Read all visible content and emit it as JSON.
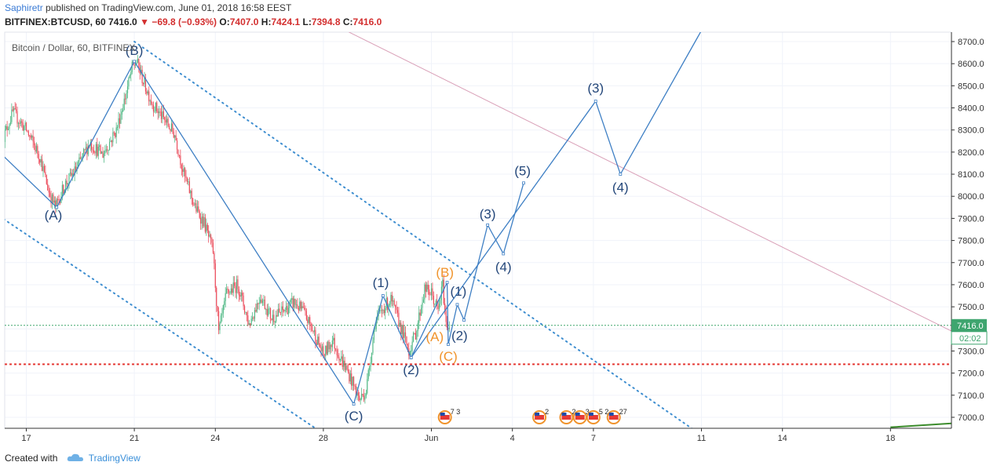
{
  "header": {
    "author": "Saphiretr",
    "published_text": "published on TradingView.com, June 01, 2018 16:58 EEST",
    "symbol_line": {
      "symbol": "BITFINEX:BTCUSD, 60",
      "last": "7416.0",
      "change": "−69.8 (−0.93%)",
      "o_label": "O:",
      "o": "7407.0",
      "h_label": "H:",
      "h": "7424.1",
      "l_label": "L:",
      "l": "7394.8",
      "c_label": "C:",
      "c": "7416.0"
    }
  },
  "footer": {
    "created_with": "Created with",
    "brand": "TradingView"
  },
  "chart_data": {
    "type": "candlestick",
    "title": "Bitcoin / Dollar, 60, BITFINEX",
    "x_ticks": [
      "17",
      "21",
      "24",
      "28",
      "Jun",
      "4",
      "7",
      "11",
      "14",
      "18"
    ],
    "y_ticks": [
      "7000.0",
      "7100.0",
      "7200.0",
      "7300.0",
      "7400.0",
      "7500.0",
      "7600.0",
      "7700.0",
      "7800.0",
      "7900.0",
      "8000.0",
      "8100.0",
      "8200.0",
      "8300.0",
      "8400.0",
      "8500.0",
      "8600.0",
      "8700.0"
    ],
    "ylim": [
      6950,
      8770
    ],
    "xlim_days_label": "May 16 2018 to Jun 21 2018",
    "price_label": "7416.0",
    "countdown_label": "02:02",
    "current_price": 7416,
    "support_level": 7240,
    "ohlc_path": [
      {
        "d": "May 16 03:00",
        "p": 8260
      },
      {
        "d": "May 16 12:00",
        "p": 8380
      },
      {
        "d": "May 17 00:00",
        "p": 8300
      },
      {
        "d": "May 17 12:00",
        "p": 8180
      },
      {
        "d": "May 17 20:00",
        "p": 8020
      },
      {
        "d": "May 18 02:00",
        "p": 7950
      },
      {
        "d": "May 18 10:00",
        "p": 8050
      },
      {
        "d": "May 18 20:00",
        "p": 8120
      },
      {
        "d": "May 19 08:00",
        "p": 8240
      },
      {
        "d": "May 19 20:00",
        "p": 8190
      },
      {
        "d": "May 20 08:00",
        "p": 8300
      },
      {
        "d": "May 20 16:00",
        "p": 8450
      },
      {
        "d": "May 20 22:00",
        "p": 8580
      },
      {
        "d": "May 21 02:00",
        "p": 8610
      },
      {
        "d": "May 21 08:00",
        "p": 8520
      },
      {
        "d": "May 21 16:00",
        "p": 8420
      },
      {
        "d": "May 22 02:00",
        "p": 8350
      },
      {
        "d": "May 22 12:00",
        "p": 8280
      },
      {
        "d": "May 22 20:00",
        "p": 8100
      },
      {
        "d": "May 23 06:00",
        "p": 7950
      },
      {
        "d": "May 23 14:00",
        "p": 7880
      },
      {
        "d": "May 23 22:00",
        "p": 7750
      },
      {
        "d": "May 24 03:00",
        "p": 7380
      },
      {
        "d": "May 24 10:00",
        "p": 7560
      },
      {
        "d": "May 24 20:00",
        "p": 7600
      },
      {
        "d": "May 25 06:00",
        "p": 7420
      },
      {
        "d": "May 25 16:00",
        "p": 7550
      },
      {
        "d": "May 26 02:00",
        "p": 7450
      },
      {
        "d": "May 26 12:00",
        "p": 7480
      },
      {
        "d": "May 26 22:00",
        "p": 7520
      },
      {
        "d": "May 27 06:00",
        "p": 7480
      },
      {
        "d": "May 27 16:00",
        "p": 7380
      },
      {
        "d": "May 28 00:00",
        "p": 7280
      },
      {
        "d": "May 28 08:00",
        "p": 7350
      },
      {
        "d": "May 28 16:00",
        "p": 7260
      },
      {
        "d": "May 29 00:00",
        "p": 7180
      },
      {
        "d": "May 29 08:00",
        "p": 7080
      },
      {
        "d": "May 29 14:00",
        "p": 7120
      },
      {
        "d": "May 29 22:00",
        "p": 7430
      },
      {
        "d": "May 30 06:00",
        "p": 7500
      },
      {
        "d": "May 30 12:00",
        "p": 7530
      },
      {
        "d": "May 30 20:00",
        "p": 7420
      },
      {
        "d": "May 31 04:00",
        "p": 7300
      },
      {
        "d": "May 31 10:00",
        "p": 7380
      },
      {
        "d": "May 31 18:00",
        "p": 7580
      },
      {
        "d": "Jun 01 00:00",
        "p": 7560
      },
      {
        "d": "Jun 01 06:00",
        "p": 7480
      },
      {
        "d": "Jun 01 10:00",
        "p": 7600
      },
      {
        "d": "Jun 01 13:00",
        "p": 7420
      },
      {
        "d": "Jun 01 16:00",
        "p": 7416
      }
    ],
    "wave_path_blue": [
      {
        "d": "May 16 00:00",
        "p": 8200
      },
      {
        "d": "May 18 03:00",
        "p": 7950
      },
      {
        "d": "May 21 00:00",
        "p": 8610
      },
      {
        "d": "May 29 03:00",
        "p": 7060
      },
      {
        "d": "May 30 05:00",
        "p": 7550
      },
      {
        "d": "May 31 06:00",
        "p": 7270
      },
      {
        "d": "Jun 01 14:00",
        "p": 7610
      },
      {
        "d": "Jun 01 15:00",
        "p": 7330
      },
      {
        "d": "Jun 01 23:00",
        "p": 7510
      },
      {
        "d": "Jun 02 05:00",
        "p": 7440
      },
      {
        "d": "Jun 03 02:00",
        "p": 7870
      },
      {
        "d": "Jun 03 16:00",
        "p": 7740
      },
      {
        "d": "Jun 04 10:00",
        "p": 8060
      }
    ],
    "wave_path_projection": [
      {
        "d": "May 31 06:00",
        "p": 7270
      },
      {
        "d": "Jun 07 02:00",
        "p": 8430
      },
      {
        "d": "Jun 08 00:00",
        "p": 8100
      },
      {
        "d": "Jun 11 00:00",
        "p": 8750
      }
    ],
    "channel_lines": [
      {
        "from": {
          "d": "May 21 00:00",
          "p": 8700
        },
        "to": {
          "d": "Jun 10 21:00",
          "p": 6930
        }
      },
      {
        "from": {
          "d": "May 16 00:00",
          "p": 7910
        },
        "to": {
          "d": "May 27 23:00",
          "p": 6930
        }
      }
    ],
    "resistance_line": {
      "from": {
        "d": "May 28 12:00",
        "p": 8770
      },
      "to": {
        "d": "Jun 21 06:00",
        "p": 7330
      }
    },
    "trend_bottom_line": {
      "from": {
        "d": "Jun 18 00:00",
        "p": 6955
      },
      "to": {
        "d": "Jun 21 06:00",
        "p": 6980
      }
    },
    "wave_labels": [
      {
        "text": "(A)",
        "d": "May 18 00:00",
        "p": 7895,
        "color": "blue"
      },
      {
        "text": "(B)",
        "d": "May 21 00:00",
        "p": 8640,
        "color": "blue"
      },
      {
        "text": "(C)",
        "d": "May 29 03:00",
        "p": 6985,
        "color": "blue"
      },
      {
        "text": "(1)",
        "d": "May 30 03:00",
        "p": 7590,
        "color": "blue"
      },
      {
        "text": "(2)",
        "d": "May 31 06:00",
        "p": 7195,
        "color": "blue"
      },
      {
        "text": "(B)",
        "d": "Jun 01 12:00",
        "p": 7635,
        "color": "orange"
      },
      {
        "text": "(A)",
        "d": "Jun 01 03:00",
        "p": 7345,
        "color": "orange"
      },
      {
        "text": "(C)",
        "d": "Jun 01 15:00",
        "p": 7255,
        "color": "orange"
      },
      {
        "text": "(1)",
        "d": "Jun 02 00:00",
        "p": 7550,
        "color": "blue"
      },
      {
        "text": "(2)",
        "d": "Jun 02 01:00",
        "p": 7350,
        "color": "blue"
      },
      {
        "text": "(3)",
        "d": "Jun 03 02:00",
        "p": 7900,
        "color": "blue"
      },
      {
        "text": "(4)",
        "d": "Jun 03 16:00",
        "p": 7660,
        "color": "blue"
      },
      {
        "text": "(5)",
        "d": "Jun 04 09:00",
        "p": 8095,
        "color": "blue"
      },
      {
        "text": "(3)",
        "d": "Jun 07 02:00",
        "p": 8470,
        "color": "blue"
      },
      {
        "text": "(4)",
        "d": "Jun 08 00:00",
        "p": 8020,
        "color": "blue"
      }
    ],
    "event_markers": [
      {
        "d": "Jun 01 12:00",
        "label": "7 3"
      },
      {
        "d": "Jun 05 00:00",
        "label": "2"
      },
      {
        "d": "Jun 06 00:00",
        "label": "2"
      },
      {
        "d": "Jun 06 12:00",
        "label": "3"
      },
      {
        "d": "Jun 07 00:00",
        "label": "5 2"
      },
      {
        "d": "Jun 07 18:00",
        "label": "27"
      }
    ],
    "colors": {
      "bull": "#53b987",
      "bear": "#eb4d5c",
      "wave_blue": "#3e7fc4",
      "wave_label_blue": "#24477a",
      "orange": "#f0932b",
      "channel_dots": "#3e8ed0",
      "resistance": "#d9a0b8",
      "support_red": "#e53935",
      "price_green": "#3fa56f",
      "grid": "#f0f3fa"
    }
  }
}
